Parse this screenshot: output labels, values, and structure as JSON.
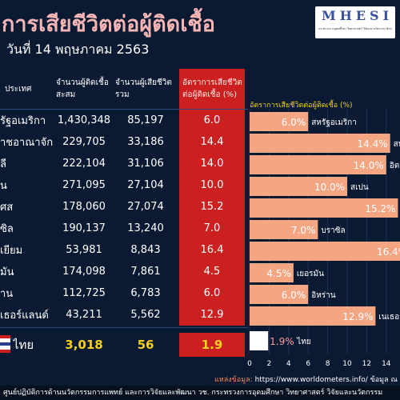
{
  "header": {
    "title": "การเสียชีวิตต่อผู้ติดเชื้อ",
    "subtitle": "วันที่ 14 พฤษภาคม 2563"
  },
  "logo": {
    "text": "MHESI",
    "subtext": "กระทรวงการอุดมศึกษา วิทยาศาสตร์ วิจัยและนวัตกรรม Ministry of Higher Education, Science, Research and Innovation"
  },
  "table": {
    "columns": [
      "ประเทศ",
      "จำนวนผู้ติดเชื้อสะสม",
      "จำนวนผู้เสียชีวิตรวม",
      "อัตราการเสียชีวิตต่อผู้ติดเชื้อ (%)"
    ],
    "rows": [
      {
        "country": "รัฐอเมริกา",
        "cases": "1,430,348",
        "deaths": "85,197",
        "rate": "6.0"
      },
      {
        "country": "าชอาณาจักร",
        "cases": "229,705",
        "deaths": "33,186",
        "rate": "14.4"
      },
      {
        "country": "ลี",
        "cases": "222,104",
        "deaths": "31,106",
        "rate": "14.0"
      },
      {
        "country": "น",
        "cases": "271,095",
        "deaths": "27,104",
        "rate": "10.0"
      },
      {
        "country": "ศส",
        "cases": "178,060",
        "deaths": "27,074",
        "rate": "15.2"
      },
      {
        "country": "ซิล",
        "cases": "190,137",
        "deaths": "13,240",
        "rate": "7.0"
      },
      {
        "country": "เยียม",
        "cases": "53,981",
        "deaths": "8,843",
        "rate": "16.4"
      },
      {
        "country": "มัน",
        "cases": "174,098",
        "deaths": "7,861",
        "rate": "4.5"
      },
      {
        "country": "าน",
        "cases": "112,725",
        "deaths": "6,783",
        "rate": "6.0"
      },
      {
        "country": "เธอร์แลนด์",
        "cases": "43,211",
        "deaths": "5,562",
        "rate": "12.9"
      }
    ],
    "thailand": {
      "country": "ไทย",
      "cases": "3,018",
      "deaths": "56",
      "rate": "1.9"
    }
  },
  "chart_data": {
    "type": "bar",
    "orientation": "horizontal",
    "title": "อัตราการเสียชีวิตต่อผู้ติดเชื้อ (%)",
    "categories": [
      "สหรัฐอเมริกา",
      "สห",
      "อิตา",
      "สเปน",
      "",
      "บราซิล",
      "",
      "เยอรมัน",
      "อิหร่าน",
      "เนเธอร์",
      "ไทย"
    ],
    "values": [
      6.0,
      14.4,
      14.0,
      10.0,
      15.2,
      7.0,
      16.4,
      4.5,
      6.0,
      12.9,
      1.9
    ],
    "value_labels": [
      "6.0%",
      "14.4%",
      "14.0%",
      "10.0%",
      "15.2%",
      "7.0%",
      "16.4%",
      "4.5%",
      "6.0%",
      "12.9%",
      "1.9%"
    ],
    "xlim": [
      0,
      18
    ],
    "xticks": [
      "0",
      "2",
      "4",
      "6",
      "8",
      "10",
      "12",
      "14"
    ],
    "colors": {
      "bar": "#f4a582",
      "highlight_bar": "#ffffff",
      "label": "#ffffff",
      "highlight_label": "#ff9999"
    }
  },
  "source": {
    "label": "แหล่งข้อมูล:",
    "text": "https://www.worldometers.info/ ข้อมูล ณ วันที่"
  },
  "footer": {
    "text": "ศูนย์ปฏิบัติการด้านนวัตกรรมการแพทย์ และการวิจัยและพัฒนา วช. กระทรวงการอุดมศึกษา วิทยาศาสตร์ วิจัยและนวัตกรรม"
  }
}
